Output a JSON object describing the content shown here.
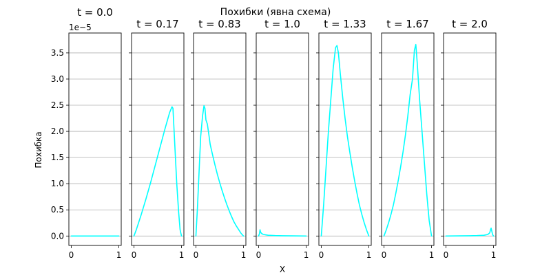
{
  "suptitle": "Похибки (явна схема)",
  "xlabel": "X",
  "ylabel": "Похибка",
  "y_offset_label": "1e−5",
  "colors": {
    "line": "#00ffff",
    "grid": "#b0b0b0"
  },
  "chart_data": {
    "type": "line",
    "xlim": [
      -0.05,
      1.05
    ],
    "ylim": [
      -0.18,
      3.88
    ],
    "y_scale_factor": 1e-05,
    "x_ticks": [
      0,
      1
    ],
    "x_tick_labels": [
      "0",
      "1"
    ],
    "y_ticks": [
      0.0,
      0.5,
      1.0,
      1.5,
      2.0,
      2.5,
      3.0,
      3.5
    ],
    "y_tick_labels": [
      "0.0",
      "0.5",
      "1.0",
      "1.5",
      "2.0",
      "2.5",
      "3.0",
      "3.5"
    ],
    "grid": "horizontal",
    "panels": [
      {
        "title": "t = 0.0",
        "points": [
          [
            0,
            0
          ],
          [
            1,
            0
          ]
        ]
      },
      {
        "title": "t = 0.17",
        "points": [
          [
            0,
            0
          ],
          [
            0.05,
            0.12
          ],
          [
            0.1,
            0.26
          ],
          [
            0.15,
            0.4
          ],
          [
            0.2,
            0.55
          ],
          [
            0.25,
            0.7
          ],
          [
            0.3,
            0.86
          ],
          [
            0.35,
            1.02
          ],
          [
            0.4,
            1.19
          ],
          [
            0.45,
            1.36
          ],
          [
            0.5,
            1.53
          ],
          [
            0.55,
            1.7
          ],
          [
            0.6,
            1.87
          ],
          [
            0.65,
            2.04
          ],
          [
            0.7,
            2.2
          ],
          [
            0.75,
            2.36
          ],
          [
            0.8,
            2.47
          ],
          [
            0.82,
            2.44
          ],
          [
            0.85,
            1.9
          ],
          [
            0.9,
            1.0
          ],
          [
            0.94,
            0.45
          ],
          [
            0.97,
            0.12
          ],
          [
            1,
            0
          ]
        ]
      },
      {
        "title": "t = 0.83",
        "points": [
          [
            0,
            0
          ],
          [
            0.03,
            0.5
          ],
          [
            0.06,
            1.1
          ],
          [
            0.1,
            1.9
          ],
          [
            0.14,
            2.3
          ],
          [
            0.17,
            2.49
          ],
          [
            0.19,
            2.44
          ],
          [
            0.21,
            2.22
          ],
          [
            0.24,
            2.14
          ],
          [
            0.27,
            1.95
          ],
          [
            0.3,
            1.75
          ],
          [
            0.35,
            1.55
          ],
          [
            0.4,
            1.36
          ],
          [
            0.45,
            1.18
          ],
          [
            0.5,
            1.02
          ],
          [
            0.55,
            0.87
          ],
          [
            0.6,
            0.73
          ],
          [
            0.65,
            0.6
          ],
          [
            0.7,
            0.48
          ],
          [
            0.75,
            0.37
          ],
          [
            0.8,
            0.27
          ],
          [
            0.85,
            0.19
          ],
          [
            0.9,
            0.12
          ],
          [
            0.95,
            0.05
          ],
          [
            1,
            0
          ]
        ]
      },
      {
        "title": "t = 1.0",
        "points": [
          [
            0,
            0
          ],
          [
            0.02,
            0.05
          ],
          [
            0.03,
            0.12
          ],
          [
            0.04,
            0.08
          ],
          [
            0.06,
            0.05
          ],
          [
            0.1,
            0.03
          ],
          [
            0.2,
            0.015
          ],
          [
            0.35,
            0.008
          ],
          [
            0.5,
            0.005
          ],
          [
            0.7,
            0.003
          ],
          [
            1,
            0
          ]
        ]
      },
      {
        "title": "t = 1.33",
        "points": [
          [
            0,
            0
          ],
          [
            0.05,
            0.6
          ],
          [
            0.1,
            1.3
          ],
          [
            0.15,
            2.0
          ],
          [
            0.2,
            2.6
          ],
          [
            0.25,
            3.2
          ],
          [
            0.3,
            3.6
          ],
          [
            0.33,
            3.64
          ],
          [
            0.36,
            3.5
          ],
          [
            0.4,
            3.1
          ],
          [
            0.45,
            2.65
          ],
          [
            0.5,
            2.25
          ],
          [
            0.55,
            1.9
          ],
          [
            0.6,
            1.6
          ],
          [
            0.65,
            1.32
          ],
          [
            0.7,
            1.06
          ],
          [
            0.75,
            0.82
          ],
          [
            0.8,
            0.6
          ],
          [
            0.85,
            0.42
          ],
          [
            0.9,
            0.26
          ],
          [
            0.95,
            0.12
          ],
          [
            1,
            0
          ]
        ]
      },
      {
        "title": "t = 1.67",
        "points": [
          [
            0,
            0
          ],
          [
            0.05,
            0.12
          ],
          [
            0.1,
            0.26
          ],
          [
            0.15,
            0.42
          ],
          [
            0.2,
            0.6
          ],
          [
            0.25,
            0.82
          ],
          [
            0.3,
            1.06
          ],
          [
            0.35,
            1.32
          ],
          [
            0.4,
            1.6
          ],
          [
            0.45,
            1.92
          ],
          [
            0.5,
            2.28
          ],
          [
            0.55,
            2.7
          ],
          [
            0.6,
            3.0
          ],
          [
            0.64,
            3.55
          ],
          [
            0.67,
            3.66
          ],
          [
            0.7,
            3.3
          ],
          [
            0.75,
            2.6
          ],
          [
            0.8,
            2.0
          ],
          [
            0.85,
            1.4
          ],
          [
            0.9,
            0.8
          ],
          [
            0.95,
            0.3
          ],
          [
            1,
            0
          ]
        ]
      },
      {
        "title": "t = 2.0",
        "points": [
          [
            0,
            0
          ],
          [
            0.3,
            0.003
          ],
          [
            0.5,
            0.005
          ],
          [
            0.65,
            0.008
          ],
          [
            0.8,
            0.015
          ],
          [
            0.88,
            0.03
          ],
          [
            0.92,
            0.06
          ],
          [
            0.94,
            0.13
          ],
          [
            0.95,
            0.15
          ],
          [
            0.96,
            0.11
          ],
          [
            0.98,
            0.03
          ],
          [
            1,
            0
          ]
        ]
      }
    ]
  }
}
